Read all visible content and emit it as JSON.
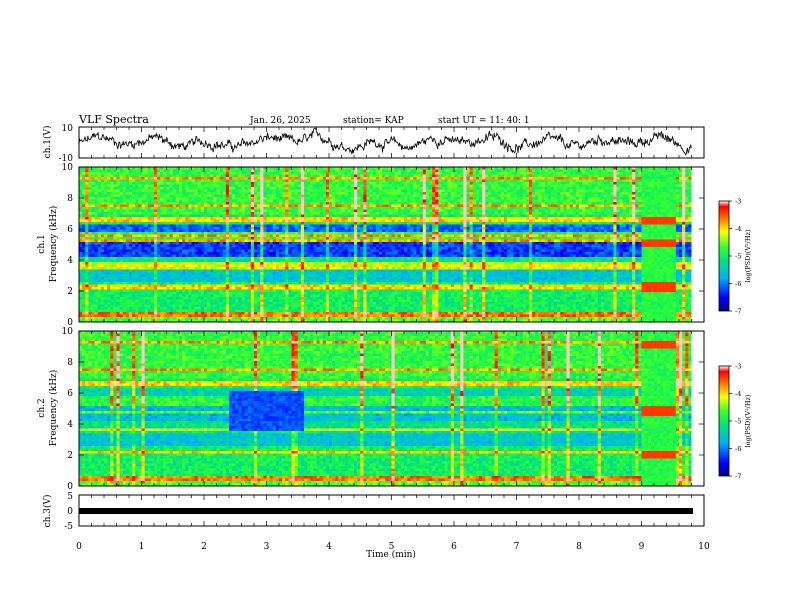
{
  "header": {
    "title": "VLF Spectra",
    "date": "Jan. 26, 2025",
    "station": "station= KAP",
    "start": "start  UT =   11: 40: 1"
  },
  "chart_data": [
    {
      "type": "line",
      "panel": "ch1-waveform",
      "ylabel": "ch.1(V)",
      "ylim": [
        -10,
        10
      ],
      "yticks": [
        "10",
        "-10"
      ],
      "xlim": [
        0,
        10
      ],
      "note_series": "noisy waveform oscillating roughly between -8 and 6 V over 0-9.8 min"
    },
    {
      "type": "heatmap",
      "panel": "ch1-spectrogram",
      "ylabel": "ch.1\nFrequency (kHz)",
      "ylim": [
        0,
        10
      ],
      "yticks": [
        "0",
        "2",
        "4",
        "6",
        "8",
        "10"
      ],
      "xlim": [
        0,
        10
      ],
      "colorbar": {
        "label": "log(PSD)(V²/Hz)",
        "range": [
          -7,
          -3
        ],
        "ticks": [
          "-7",
          "-6",
          "-5",
          "-4",
          "-3"
        ]
      }
    },
    {
      "type": "heatmap",
      "panel": "ch2-spectrogram",
      "ylabel": "ch.2\nFrequency (kHz)",
      "ylim": [
        0,
        10
      ],
      "yticks": [
        "0",
        "2",
        "4",
        "6",
        "8",
        "10"
      ],
      "xlim": [
        0,
        10
      ],
      "colorbar": {
        "label": "log(PSD)(V²/Hz)",
        "range": [
          -7,
          -3
        ],
        "ticks": [
          "-7",
          "-6",
          "-5",
          "-4",
          "-3"
        ]
      }
    },
    {
      "type": "line",
      "panel": "ch3-waveform",
      "ylabel": "ch.3(V)",
      "ylim": [
        -5,
        5
      ],
      "yticks": [
        "5",
        "0",
        "-5"
      ],
      "xlim": [
        0,
        10
      ],
      "xlabel": "Time (min)",
      "xticks": [
        "0",
        "1",
        "2",
        "3",
        "4",
        "5",
        "6",
        "7",
        "8",
        "9",
        "10"
      ],
      "note_series": "thick flat band near -1.3 V from 0 to 9.8 min"
    }
  ],
  "colors": {
    "background": "#ffffff",
    "axes": "#000000",
    "spectro_low": "#1a2fd6",
    "spectro_mid": "#2fd06a",
    "spectro_high": "#ff2a1a"
  }
}
